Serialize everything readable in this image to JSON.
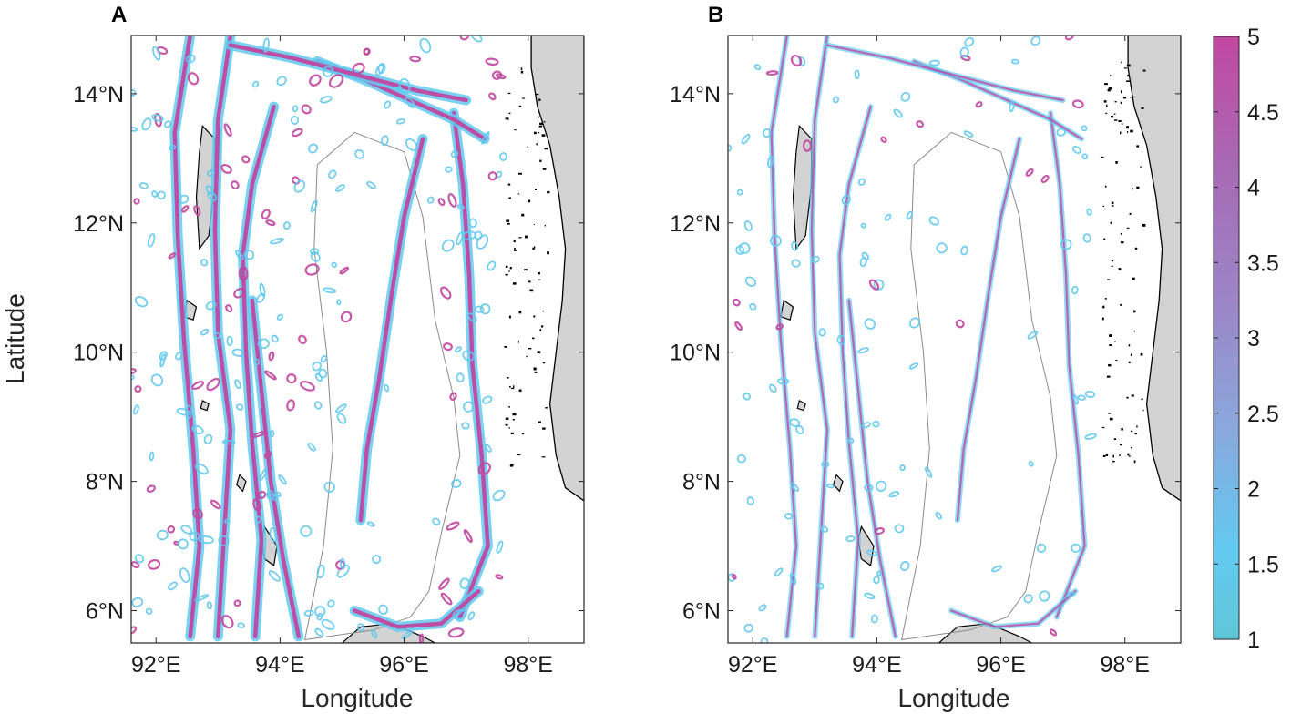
{
  "panels": [
    {
      "letter": "A",
      "xlabel": "Longitude",
      "ylabel": "Latitude",
      "lon_ticks": [
        "92°E",
        "94°E",
        "96°E",
        "98°E"
      ],
      "lat_ticks": [
        "6°N",
        "8°N",
        "10°N",
        "12°N",
        "14°N"
      ],
      "intensity": "high"
    },
    {
      "letter": "B",
      "xlabel": "Longitude",
      "ylabel": "",
      "lon_ticks": [
        "92°E",
        "94°E",
        "96°E",
        "98°E"
      ],
      "lat_ticks": [
        "6°N",
        "8°N",
        "10°N",
        "12°N",
        "14°N"
      ],
      "intensity": "low"
    }
  ],
  "map_extent": {
    "lon": [
      91.6,
      98.9
    ],
    "lat": [
      5.5,
      14.9
    ]
  },
  "colorbar": {
    "min": 1,
    "max": 5,
    "ticks": [
      "1",
      "1.5",
      "2",
      "2.5",
      "3",
      "3.5",
      "4",
      "4.5",
      "5"
    ],
    "colors": [
      "#5ec8d8",
      "#62c9f0",
      "#8aa8dc",
      "#9b86c8",
      "#a76ab4",
      "#c248a2"
    ]
  },
  "colors": {
    "land": "#d3d3d3",
    "contour": "#8a8a8a",
    "coast": "#000000",
    "low": "#62c9f0",
    "high": "#c048a0"
  }
}
